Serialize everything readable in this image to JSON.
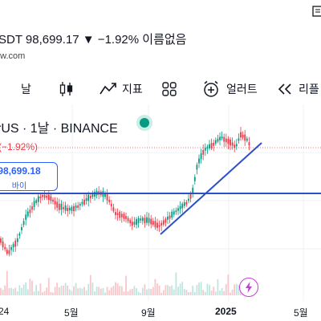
{
  "header": {
    "title": "SDT 98,699.17 ▼ −1.92% 이름없음",
    "url": "ew.com"
  },
  "toolbar": {
    "interval": "날",
    "indicators": "지표",
    "alerts": "얼러트",
    "replay": "리플"
  },
  "chart": {
    "symbol_line": "rUS · 1날 · BINANCE",
    "change_label": "(−1.92%)",
    "buy_price": "98,699.18",
    "buy_label": "바이",
    "x_ticks": [
      "24",
      "5월",
      "9월",
      "2025",
      "5월"
    ],
    "colors": {
      "up": "#089981",
      "down": "#f23645",
      "trendline": "#2d50c8",
      "accent": "#2962ff"
    }
  },
  "icons": {
    "reader": "reader-icon",
    "candles": "candles-icon",
    "indicators": "indicators-icon",
    "templates": "templates-icon",
    "alert": "alarm-clock-icon",
    "replay": "rewind-icon",
    "live": "live-dot-icon",
    "bolt": "lightning-icon"
  }
}
